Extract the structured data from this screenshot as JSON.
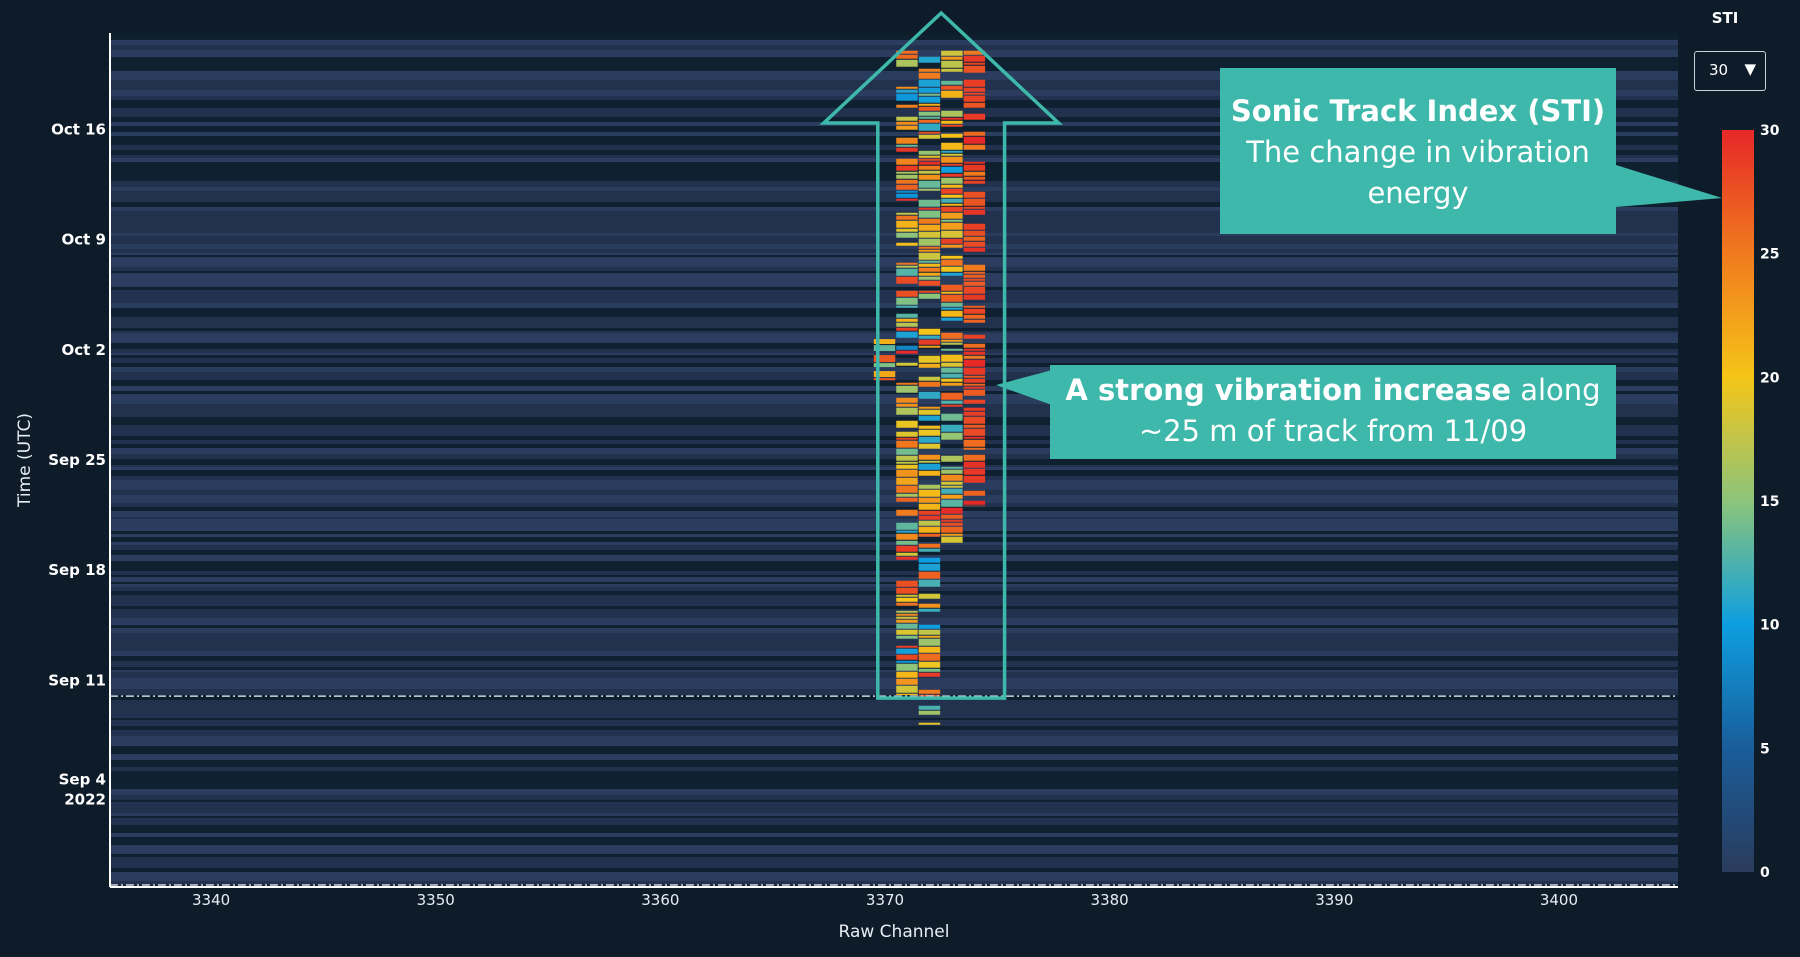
{
  "chart_data": {
    "type": "heatmap",
    "xlabel": "Raw Channel",
    "ylabel": "Time (UTC)",
    "x_ticks": [
      3340,
      3350,
      3360,
      3370,
      3380,
      3390,
      3400
    ],
    "xlim": [
      3335.5,
      3405.3
    ],
    "y_ticks": [
      {
        "label": "Sep 4",
        "label2": "2022",
        "date": "2022-09-04"
      },
      {
        "label": "Sep 11",
        "label2": "",
        "date": "2022-09-11"
      },
      {
        "label": "Sep 18",
        "label2": "",
        "date": "2022-09-18"
      },
      {
        "label": "Sep 25",
        "label2": "",
        "date": "2022-09-25"
      },
      {
        "label": "Oct 2",
        "label2": "",
        "date": "2022-10-02"
      },
      {
        "label": "Oct 9",
        "label2": "",
        "date": "2022-10-09"
      },
      {
        "label": "Oct 16",
        "label2": "",
        "date": "2022-10-16"
      }
    ],
    "ylim": [
      "2022-08-29",
      "2022-10-22"
    ],
    "colorbar": {
      "title": "STI",
      "min": 0,
      "max": 30,
      "ticks": [
        0,
        5,
        10,
        15,
        20,
        25,
        30
      ],
      "colorscale": [
        "#2a3b5c",
        "#1a5d9a",
        "#0d9ee0",
        "#8cc47a",
        "#f5c518",
        "#f07a1e",
        "#e62828"
      ]
    },
    "hotspots": [
      {
        "x": 3371,
        "date_start": "2022-09-10",
        "date_end": "2022-10-21",
        "sti_range": [
          8,
          30
        ]
      },
      {
        "x": 3372,
        "date_start": "2022-09-08",
        "date_end": "2022-10-21",
        "sti_range": [
          10,
          30
        ]
      },
      {
        "x": 3373,
        "date_start": "2022-09-19",
        "date_end": "2022-10-21",
        "sti_range": [
          10,
          30
        ]
      },
      {
        "x": 3374,
        "date_start": "2022-09-22",
        "date_end": "2022-10-21",
        "sti_range": [
          25,
          30
        ]
      },
      {
        "x": 3370,
        "date_start": "2022-09-30",
        "date_end": "2022-10-03",
        "sti_range": [
          8,
          28
        ]
      }
    ],
    "reference_line_date": "2022-09-10",
    "arrow": {
      "x_from": 3370,
      "x_to": 3375,
      "date_from": "2022-09-10",
      "date_to": "2022-10-22"
    }
  },
  "selector": {
    "label": "STI",
    "value": "30"
  },
  "callouts": {
    "sti": {
      "bold": "Sonic Track Index (STI)",
      "text": "The change in vibration energy"
    },
    "increase": {
      "bold": "A strong vibration increase",
      "text": " along ~25 m of track from 11/09"
    }
  },
  "colors": {
    "background": "#0e1c2a",
    "callout": "#3db8aa",
    "arrow": "#3db8aa"
  }
}
